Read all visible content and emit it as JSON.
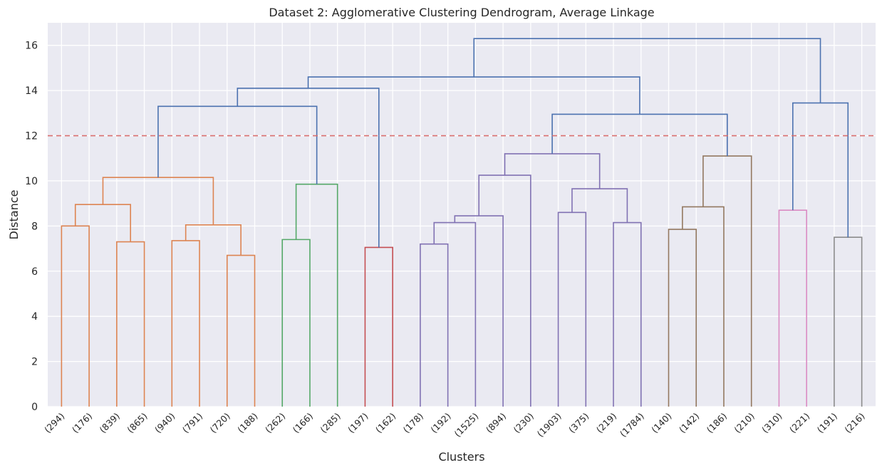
{
  "chart_data": {
    "type": "dendrogram",
    "title": "Dataset 2: Agglomerative Clustering Dendrogram, Average Linkage",
    "xlabel": "Clusters",
    "ylabel": "Distance",
    "ylim": [
      0,
      17
    ],
    "yticks": [
      0,
      2,
      4,
      6,
      8,
      10,
      12,
      14,
      16
    ],
    "grid": true,
    "threshold": {
      "value": 12.0,
      "color": "#d9706f"
    },
    "leaves": [
      "(294)",
      "(176)",
      "(839)",
      "(865)",
      "(940)",
      "(791)",
      "(720)",
      "(188)",
      "(262)",
      "(166)",
      "(285)",
      "(197)",
      "(162)",
      "(178)",
      "(192)",
      "(1525)",
      "(894)",
      "(230)",
      "(1903)",
      "(375)",
      "(219)",
      "(1784)",
      "(140)",
      "(142)",
      "(186)",
      "(210)",
      "(310)",
      "(221)",
      "(191)",
      "(216)"
    ],
    "colors": {
      "orange": "#dd8452",
      "green": "#55a868",
      "red": "#c44e52",
      "purple": "#8172b3",
      "brown": "#937860",
      "pink": "#da8bc3",
      "gray": "#8c8c8c",
      "blue": "#4c72b0"
    },
    "merges": [
      {
        "id": "m1",
        "left": "L0",
        "right": "L1",
        "height": 8.0,
        "color": "orange"
      },
      {
        "id": "m2",
        "left": "L2",
        "right": "L3",
        "height": 7.3,
        "color": "orange"
      },
      {
        "id": "m3",
        "left": "m1",
        "right": "m2",
        "height": 8.95,
        "color": "orange"
      },
      {
        "id": "m4",
        "left": "L4",
        "right": "L5",
        "height": 7.35,
        "color": "orange"
      },
      {
        "id": "m5",
        "left": "L6",
        "right": "L7",
        "height": 6.7,
        "color": "orange"
      },
      {
        "id": "m6",
        "left": "m4",
        "right": "m5",
        "height": 8.05,
        "color": "orange"
      },
      {
        "id": "m7",
        "left": "m3",
        "right": "m6",
        "height": 10.15,
        "color": "orange"
      },
      {
        "id": "m8",
        "left": "L8",
        "right": "L9",
        "height": 7.4,
        "color": "green"
      },
      {
        "id": "m9",
        "left": "m8",
        "right": "L10",
        "height": 9.85,
        "color": "green"
      },
      {
        "id": "m10",
        "left": "m7",
        "right": "m9",
        "height": 13.3,
        "color": "blue"
      },
      {
        "id": "m11",
        "left": "L11",
        "right": "L12",
        "height": 7.05,
        "color": "red"
      },
      {
        "id": "m12",
        "left": "m10",
        "right": "m11",
        "height": 14.1,
        "color": "blue"
      },
      {
        "id": "m13",
        "left": "L13",
        "right": "L14",
        "height": 7.2,
        "color": "purple"
      },
      {
        "id": "m14",
        "left": "m13",
        "right": "L15",
        "height": 8.15,
        "color": "purple"
      },
      {
        "id": "m15",
        "left": "m14",
        "right": "L16",
        "height": 8.45,
        "color": "purple"
      },
      {
        "id": "m16",
        "left": "m15",
        "right": "L17",
        "height": 10.25,
        "color": "purple"
      },
      {
        "id": "m17",
        "left": "L18",
        "right": "L19",
        "height": 8.6,
        "color": "purple"
      },
      {
        "id": "m18",
        "left": "L20",
        "right": "L21",
        "height": 8.15,
        "color": "purple"
      },
      {
        "id": "m19",
        "left": "m17",
        "right": "m18",
        "height": 9.65,
        "color": "purple"
      },
      {
        "id": "m20",
        "left": "m16",
        "right": "m19",
        "height": 11.2,
        "color": "purple"
      },
      {
        "id": "m21",
        "left": "L22",
        "right": "L23",
        "height": 7.85,
        "color": "brown"
      },
      {
        "id": "m22",
        "left": "m21",
        "right": "L24",
        "height": 8.85,
        "color": "brown"
      },
      {
        "id": "m23",
        "left": "m22",
        "right": "L25",
        "height": 11.1,
        "color": "brown"
      },
      {
        "id": "m24",
        "left": "m20",
        "right": "m23",
        "height": 12.95,
        "color": "blue"
      },
      {
        "id": "m25",
        "left": "m12",
        "right": "m24",
        "height": 14.6,
        "color": "blue"
      },
      {
        "id": "m26",
        "left": "L26",
        "right": "L27",
        "height": 8.7,
        "color": "pink"
      },
      {
        "id": "m27",
        "left": "L28",
        "right": "L29",
        "height": 7.5,
        "color": "gray"
      },
      {
        "id": "m28",
        "left": "m26",
        "right": "m27",
        "height": 13.45,
        "color": "blue"
      },
      {
        "id": "m29",
        "left": "m25",
        "right": "m28",
        "height": 16.3,
        "color": "blue"
      }
    ]
  }
}
